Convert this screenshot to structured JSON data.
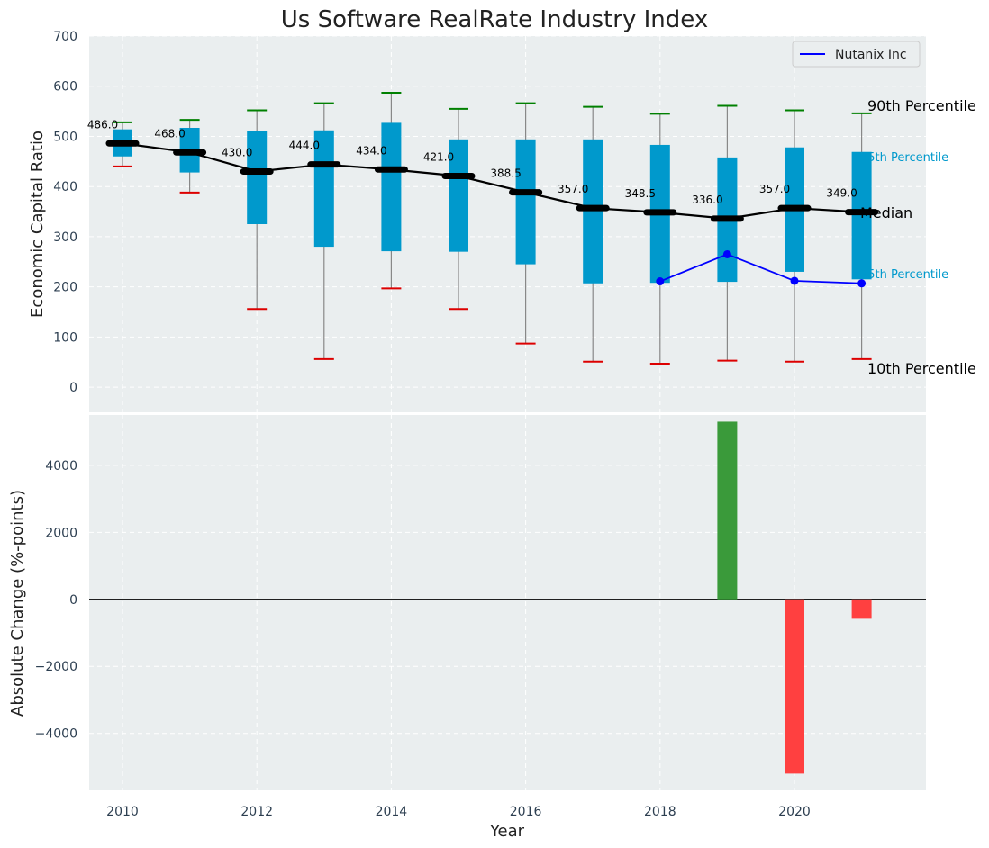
{
  "chart_data": [
    {
      "type": "box",
      "title": "Us Software RealRate Industry Index",
      "xlabel": "",
      "ylabel": "Economic Capital Ratio",
      "ylim": [
        -50,
        700
      ],
      "yticks": [
        0,
        100,
        200,
        300,
        400,
        500,
        600,
        700
      ],
      "grid": true,
      "legend": {
        "position": "top-right",
        "entries": [
          "Nutanix Inc"
        ]
      },
      "years": [
        2010,
        2011,
        2012,
        2013,
        2014,
        2015,
        2016,
        2017,
        2018,
        2019,
        2020,
        2021
      ],
      "p10": [
        440,
        388,
        156,
        56,
        197,
        156,
        87,
        51,
        47,
        53,
        51,
        56
      ],
      "p25": [
        460,
        428,
        325,
        280,
        271,
        270,
        245,
        207,
        208,
        210,
        230,
        215
      ],
      "median": [
        486.0,
        468.0,
        430.0,
        444.0,
        434.0,
        421.0,
        388.5,
        357.0,
        348.5,
        336.0,
        357.0,
        349.0
      ],
      "median_labels": [
        "486.0",
        "468.0",
        "430.0",
        "444.0",
        "434.0",
        "421.0",
        "388.5",
        "357.0",
        "348.5",
        "336.0",
        "357.0",
        "349.0"
      ],
      "p75": [
        514,
        517,
        510,
        512,
        527,
        494,
        494,
        494,
        483,
        458,
        478,
        469
      ],
      "p90": [
        528,
        533,
        552,
        566,
        587,
        555,
        566,
        559,
        545,
        561,
        552,
        546
      ],
      "series": [
        {
          "name": "Nutanix Inc",
          "x": [
            2018,
            2019,
            2020,
            2021
          ],
          "values": [
            211,
            265,
            212,
            207
          ],
          "color": "#0000ff"
        }
      ],
      "annotations": [
        "90th Percentile",
        "75th Percentile",
        "Median",
        "25th Percentile",
        "10th Percentile"
      ],
      "colors": {
        "box": "#0099cc",
        "p90": "#008000",
        "p10": "#dd0000",
        "median": "#000000",
        "whisker": "#888888"
      }
    },
    {
      "type": "bar",
      "xlabel": "Year",
      "ylabel": "Absolute Change (%-points)",
      "ylim": [
        -5700,
        5500
      ],
      "yticks": [
        -4000,
        -2000,
        0,
        2000,
        4000
      ],
      "xticks": [
        2010,
        2012,
        2014,
        2016,
        2018,
        2020
      ],
      "x": [
        2019,
        2020,
        2021
      ],
      "values": [
        5300,
        -5200,
        -580
      ],
      "colors": {
        "positive": "#3a9a3a",
        "negative": "#ff4040"
      }
    }
  ]
}
